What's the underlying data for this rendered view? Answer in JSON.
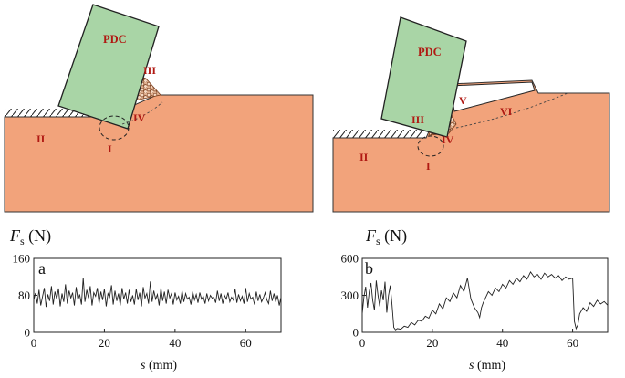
{
  "diagrams": {
    "left": {
      "pdc_label": "PDC",
      "zone_labels": [
        "I",
        "II",
        "III",
        "IV"
      ]
    },
    "right": {
      "pdc_label": "PDC",
      "zone_labels": [
        "I",
        "II",
        "III",
        "IV",
        "V",
        "VI"
      ]
    }
  },
  "colors": {
    "rock": "#f2a37b",
    "cutter": "#a9d5a6",
    "label": "#b01812"
  },
  "chart_data": [
    {
      "type": "line",
      "panel_label": "a",
      "ylabel_symbol": "F",
      "ylabel_subscript": "s",
      "ylabel_unit": " (N)",
      "xlabel_symbol": "s",
      "xlabel_unit": " (mm)",
      "xlim": [
        0,
        70
      ],
      "ylim": [
        0,
        160
      ],
      "xticks": [
        0,
        20,
        40,
        60
      ],
      "yticks": [
        0,
        80,
        160
      ],
      "series": [
        {
          "x": [
            0,
            0.5,
            1,
            1.5,
            2,
            2.5,
            3,
            3.5,
            4,
            4.5,
            5,
            5.5,
            6,
            6.5,
            7,
            7.5,
            8,
            8.5,
            9,
            9.5,
            10,
            10.5,
            11,
            11.5,
            12,
            12.5,
            13,
            13.5,
            14,
            14.5,
            15,
            15.5,
            16,
            16.5,
            17,
            17.5,
            18,
            18.5,
            19,
            19.5,
            20,
            20.5,
            21,
            21.5,
            22,
            22.5,
            23,
            23.5,
            24,
            24.5,
            25,
            25.5,
            26,
            26.5,
            27,
            27.5,
            28,
            28.5,
            29,
            29.5,
            30,
            30.5,
            31,
            31.5,
            32,
            32.5,
            33,
            33.5,
            34,
            34.5,
            35,
            35.5,
            36,
            36.5,
            37,
            37.5,
            38,
            38.5,
            39,
            39.5,
            40,
            40.5,
            41,
            41.5,
            42,
            42.5,
            43,
            43.5,
            44,
            44.5,
            45,
            45.5,
            46,
            46.5,
            47,
            47.5,
            48,
            48.5,
            49,
            49.5,
            50,
            50.5,
            51,
            51.5,
            52,
            52.5,
            53,
            53.5,
            54,
            54.5,
            55,
            55.5,
            56,
            56.5,
            57,
            57.5,
            58,
            58.5,
            59,
            59.5,
            60,
            60.5,
            61,
            61.5,
            62,
            62.5,
            63,
            63.5,
            64,
            64.5,
            65,
            65.5,
            66,
            66.5,
            67,
            67.5,
            68,
            68.5,
            69,
            69.5,
            70
          ],
          "y": [
            70,
            85,
            62,
            92,
            58,
            78,
            96,
            55,
            82,
            68,
            100,
            60,
            88,
            72,
            95,
            56,
            84,
            66,
            104,
            62,
            90,
            74,
            86,
            58,
            98,
            70,
            82,
            60,
            118,
            66,
            92,
            74,
            100,
            58,
            86,
            78,
            96,
            62,
            88,
            70,
            94,
            56,
            84,
            76,
            102,
            60,
            90,
            68,
            84,
            58,
            96,
            72,
            86,
            62,
            92,
            66,
            80,
            60,
            94,
            70,
            86,
            56,
            98,
            74,
            84,
            62,
            110,
            66,
            90,
            72,
            82,
            58,
            96,
            68,
            88,
            62,
            92,
            74,
            84,
            60,
            86,
            70,
            78,
            62,
            90,
            66,
            84,
            72,
            76,
            60,
            88,
            70,
            82,
            64,
            86,
            72,
            78,
            62,
            84,
            68,
            80,
            74,
            76,
            64,
            90,
            68,
            84,
            62,
            80,
            72,
            86,
            66,
            76,
            70,
            94,
            64,
            82,
            68,
            78,
            62,
            96,
            66,
            84,
            72,
            76,
            60,
            88,
            68,
            82,
            66,
            74,
            86,
            70,
            62,
            90,
            68,
            84,
            66,
            80,
            58,
            76
          ]
        }
      ]
    },
    {
      "type": "line",
      "panel_label": "b",
      "ylabel_symbol": "F",
      "ylabel_subscript": "s",
      "ylabel_unit": " (N)",
      "xlabel_symbol": "s",
      "xlabel_unit": " (mm)",
      "xlim": [
        0,
        70
      ],
      "ylim": [
        0,
        600
      ],
      "xticks": [
        0,
        20,
        40,
        60
      ],
      "yticks": [
        0,
        300,
        600
      ],
      "series": [
        {
          "x": [
            0,
            0.5,
            1,
            1.5,
            2,
            2.5,
            3,
            3.5,
            4,
            4.5,
            5,
            5.5,
            6,
            6.5,
            7,
            7.5,
            8,
            8.5,
            9,
            9.5,
            10,
            11,
            12,
            13,
            14,
            15,
            16,
            17,
            18,
            19,
            20,
            21,
            22,
            23,
            24,
            25,
            26,
            27,
            28,
            29,
            30,
            31,
            32,
            32.5,
            33,
            33.5,
            34,
            34.5,
            35,
            36,
            37,
            38,
            39,
            40,
            41,
            42,
            43,
            44,
            45,
            46,
            47,
            48,
            49,
            50,
            51,
            52,
            53,
            54,
            55,
            56,
            57,
            58,
            59,
            60,
            60.5,
            61,
            61.5,
            62,
            63,
            64,
            65,
            66,
            67,
            68,
            69,
            70
          ],
          "y": [
            150,
            290,
            370,
            200,
            330,
            400,
            260,
            180,
            420,
            300,
            210,
            340,
            260,
            410,
            160,
            300,
            380,
            220,
            40,
            20,
            30,
            25,
            50,
            40,
            80,
            60,
            100,
            90,
            130,
            115,
            180,
            150,
            230,
            190,
            280,
            250,
            320,
            280,
            380,
            330,
            440,
            270,
            200,
            180,
            160,
            120,
            200,
            240,
            270,
            330,
            300,
            360,
            330,
            390,
            360,
            420,
            390,
            440,
            410,
            460,
            430,
            490,
            450,
            470,
            430,
            480,
            450,
            470,
            440,
            460,
            420,
            450,
            430,
            440,
            90,
            30,
            60,
            150,
            200,
            170,
            240,
            210,
            260,
            230,
            250,
            220
          ]
        }
      ]
    }
  ]
}
